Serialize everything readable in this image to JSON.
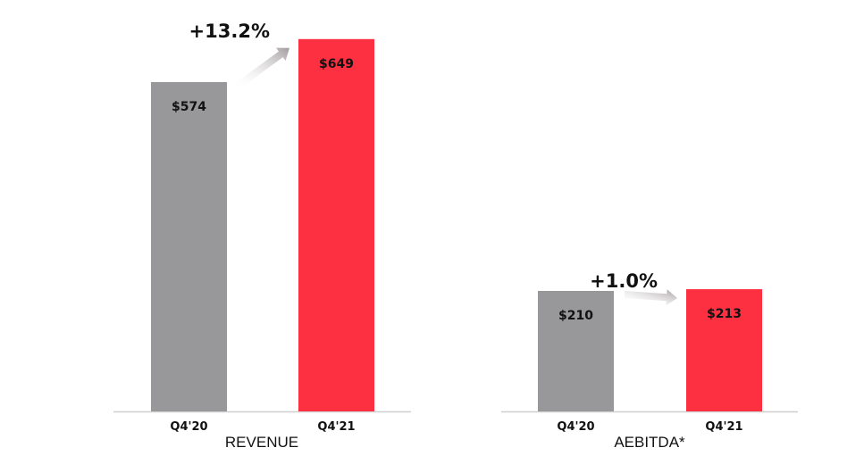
{
  "chart_data": [
    {
      "type": "bar",
      "title": "REVENUE",
      "categories": [
        "Q4'20",
        "Q4'21"
      ],
      "values": [
        574,
        649
      ],
      "value_labels": [
        "$574",
        "$649"
      ],
      "colors": [
        "#98979a",
        "#fd3041"
      ],
      "change_label": "+13.2%",
      "ylim": [
        0,
        700
      ],
      "grid": false
    },
    {
      "type": "bar",
      "title": "AEBITDA*",
      "categories": [
        "Q4'20",
        "Q4'21"
      ],
      "values": [
        210,
        213
      ],
      "value_labels": [
        "$210",
        "$213"
      ],
      "colors": [
        "#98979a",
        "#fd3041"
      ],
      "change_label": "+1.0%",
      "ylim": [
        0,
        700
      ],
      "grid": false
    }
  ]
}
